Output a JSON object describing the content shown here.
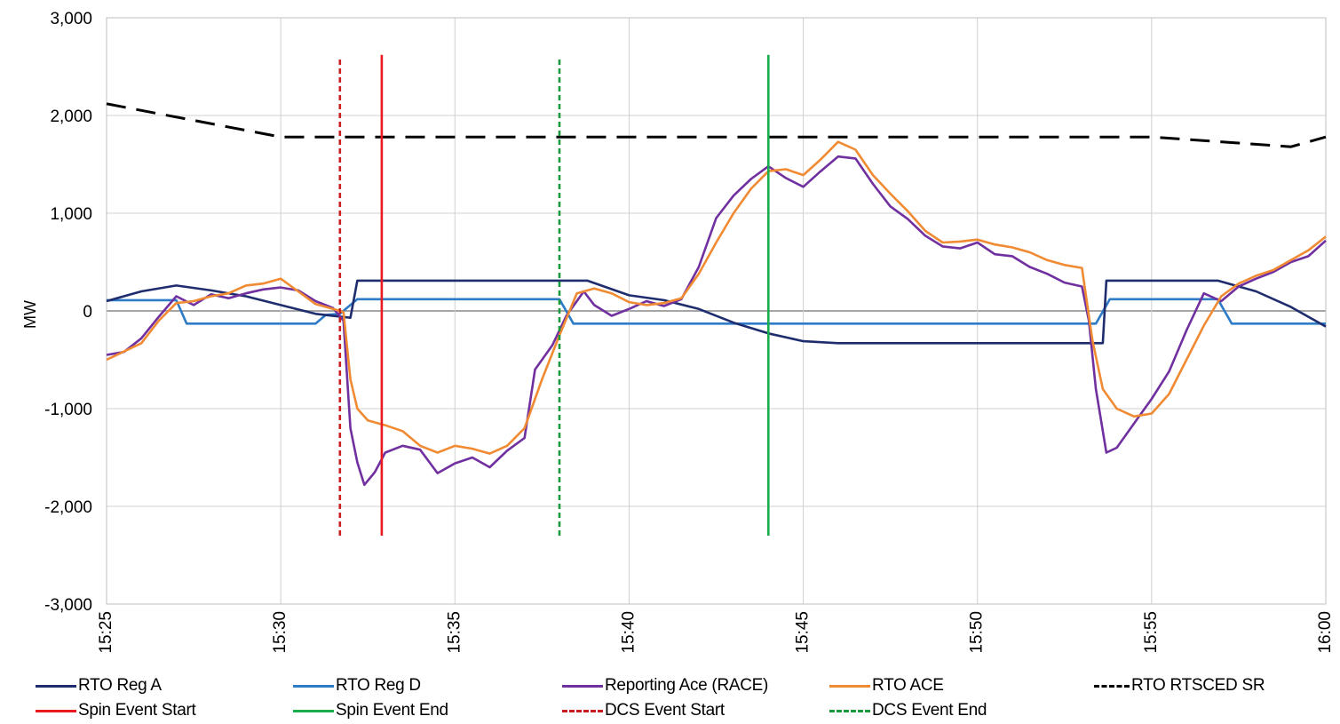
{
  "chart_data": {
    "type": "line",
    "title": "",
    "xlabel": "",
    "ylabel": "MW",
    "ylim": [
      -3000,
      3000
    ],
    "yticks": [
      -3000,
      -2000,
      -1000,
      0,
      1000,
      2000,
      3000
    ],
    "ytick_labels": [
      "-3,000",
      "-2,000",
      "-1,000",
      "0",
      "1,000",
      "2,000",
      "3,000"
    ],
    "xlim": [
      "15:25",
      "16:00"
    ],
    "xticks": [
      "15:25",
      "15:30",
      "15:35",
      "15:40",
      "15:45",
      "15:50",
      "15:55",
      "16:00"
    ],
    "grid": true,
    "legend_position": "bottom",
    "series": [
      {
        "name": "RTO Reg A",
        "color": "#1f2d6e",
        "dash": "solid",
        "points": [
          [
            "15:25",
            100
          ],
          [
            "15:26",
            200
          ],
          [
            "15:27",
            260
          ],
          [
            "15:28",
            210
          ],
          [
            "15:29",
            150
          ],
          [
            "15:30",
            60
          ],
          [
            "15:31",
            -30
          ],
          [
            "15:32",
            -70
          ],
          [
            "15:32.2",
            310
          ],
          [
            "15:38.8",
            310
          ],
          [
            "15:40",
            160
          ],
          [
            "15:41",
            110
          ],
          [
            "15:42",
            20
          ],
          [
            "15:43",
            -120
          ],
          [
            "15:44",
            -230
          ],
          [
            "15:45",
            -310
          ],
          [
            "15:46",
            -330
          ],
          [
            "15:53.6",
            -330
          ],
          [
            "15:53.7",
            310
          ],
          [
            "15:56.9",
            310
          ],
          [
            "15:58",
            200
          ],
          [
            "15:59",
            40
          ],
          [
            "16:00",
            -160
          ]
        ]
      },
      {
        "name": "RTO Reg D",
        "color": "#2e7cc8",
        "dash": "solid",
        "points": [
          [
            "15:25",
            110
          ],
          [
            "15:27",
            110
          ],
          [
            "15:27.3",
            -130
          ],
          [
            "15:31",
            -130
          ],
          [
            "15:31.3",
            -40
          ],
          [
            "15:31.7",
            -30
          ],
          [
            "15:32.2",
            120
          ],
          [
            "15:38",
            120
          ],
          [
            "15:38.4",
            -130
          ],
          [
            "15:53.4",
            -130
          ],
          [
            "15:53.8",
            120
          ],
          [
            "15:56.9",
            120
          ],
          [
            "15:57.3",
            -130
          ],
          [
            "16:00",
            -130
          ]
        ]
      },
      {
        "name": "Reporting Ace (RACE)",
        "color": "#7030a0",
        "dash": "solid",
        "points": [
          [
            "15:25",
            -450
          ],
          [
            "15:25.5",
            -420
          ],
          [
            "15:26",
            -280
          ],
          [
            "15:26.5",
            -60
          ],
          [
            "15:27",
            150
          ],
          [
            "15:27.5",
            60
          ],
          [
            "15:28",
            170
          ],
          [
            "15:28.5",
            130
          ],
          [
            "15:29",
            180
          ],
          [
            "15:29.5",
            220
          ],
          [
            "15:30",
            240
          ],
          [
            "15:30.5",
            210
          ],
          [
            "15:31",
            100
          ],
          [
            "15:31.5",
            30
          ],
          [
            "15:31.8",
            -100
          ],
          [
            "15:32",
            -1200
          ],
          [
            "15:32.2",
            -1550
          ],
          [
            "15:32.4",
            -1780
          ],
          [
            "15:32.7",
            -1650
          ],
          [
            "15:33",
            -1450
          ],
          [
            "15:33.5",
            -1380
          ],
          [
            "15:34",
            -1420
          ],
          [
            "15:34.5",
            -1660
          ],
          [
            "15:35",
            -1560
          ],
          [
            "15:35.5",
            -1500
          ],
          [
            "15:36",
            -1600
          ],
          [
            "15:36.5",
            -1430
          ],
          [
            "15:37",
            -1300
          ],
          [
            "15:37.3",
            -600
          ],
          [
            "15:37.8",
            -350
          ],
          [
            "15:38.2",
            -50
          ],
          [
            "15:38.7",
            200
          ],
          [
            "15:39",
            60
          ],
          [
            "15:39.5",
            -50
          ],
          [
            "15:40",
            20
          ],
          [
            "15:40.5",
            100
          ],
          [
            "15:41",
            50
          ],
          [
            "15:41.5",
            120
          ],
          [
            "15:42",
            450
          ],
          [
            "15:42.5",
            950
          ],
          [
            "15:43",
            1180
          ],
          [
            "15:43.5",
            1350
          ],
          [
            "15:44",
            1480
          ],
          [
            "15:44.5",
            1360
          ],
          [
            "15:45",
            1270
          ],
          [
            "15:45.5",
            1430
          ],
          [
            "15:46",
            1580
          ],
          [
            "15:46.5",
            1560
          ],
          [
            "15:47",
            1300
          ],
          [
            "15:47.5",
            1070
          ],
          [
            "15:48",
            940
          ],
          [
            "15:48.5",
            770
          ],
          [
            "15:49",
            660
          ],
          [
            "15:49.5",
            640
          ],
          [
            "15:50",
            700
          ],
          [
            "15:50.5",
            580
          ],
          [
            "15:51",
            560
          ],
          [
            "15:51.5",
            450
          ],
          [
            "15:52",
            380
          ],
          [
            "15:52.5",
            290
          ],
          [
            "15:53",
            250
          ],
          [
            "15:53.2",
            -100
          ],
          [
            "15:53.4",
            -800
          ],
          [
            "15:53.7",
            -1450
          ],
          [
            "15:54",
            -1400
          ],
          [
            "15:54.5",
            -1150
          ],
          [
            "15:55",
            -900
          ],
          [
            "15:55.5",
            -620
          ],
          [
            "15:56",
            -200
          ],
          [
            "15:56.5",
            180
          ],
          [
            "15:57",
            100
          ],
          [
            "15:57.5",
            250
          ],
          [
            "15:58",
            330
          ],
          [
            "15:58.5",
            400
          ],
          [
            "15:59",
            500
          ],
          [
            "15:59.5",
            560
          ],
          [
            "16:00",
            720
          ]
        ]
      },
      {
        "name": "RTO ACE",
        "color": "#f08a33",
        "dash": "solid",
        "points": [
          [
            "15:25",
            -500
          ],
          [
            "15:26",
            -330
          ],
          [
            "15:26.5",
            -100
          ],
          [
            "15:27",
            80
          ],
          [
            "15:27.5",
            100
          ],
          [
            "15:28",
            150
          ],
          [
            "15:28.5",
            180
          ],
          [
            "15:29",
            260
          ],
          [
            "15:29.5",
            280
          ],
          [
            "15:30",
            330
          ],
          [
            "15:30.5",
            200
          ],
          [
            "15:31",
            70
          ],
          [
            "15:31.5",
            20
          ],
          [
            "15:31.8",
            -10
          ],
          [
            "15:32",
            -700
          ],
          [
            "15:32.2",
            -1000
          ],
          [
            "15:32.5",
            -1120
          ],
          [
            "15:33",
            -1170
          ],
          [
            "15:33.5",
            -1230
          ],
          [
            "15:34",
            -1380
          ],
          [
            "15:34.5",
            -1450
          ],
          [
            "15:35",
            -1380
          ],
          [
            "15:35.5",
            -1410
          ],
          [
            "15:36",
            -1460
          ],
          [
            "15:36.5",
            -1380
          ],
          [
            "15:37",
            -1200
          ],
          [
            "15:37.5",
            -700
          ],
          [
            "15:38",
            -250
          ],
          [
            "15:38.5",
            180
          ],
          [
            "15:39",
            230
          ],
          [
            "15:39.5",
            180
          ],
          [
            "15:40",
            90
          ],
          [
            "15:40.5",
            60
          ],
          [
            "15:41",
            80
          ],
          [
            "15:41.5",
            130
          ],
          [
            "15:42",
            380
          ],
          [
            "15:42.5",
            700
          ],
          [
            "15:43",
            1000
          ],
          [
            "15:43.5",
            1250
          ],
          [
            "15:44",
            1430
          ],
          [
            "15:44.5",
            1450
          ],
          [
            "15:45",
            1390
          ],
          [
            "15:45.5",
            1550
          ],
          [
            "15:46",
            1730
          ],
          [
            "15:46.5",
            1650
          ],
          [
            "15:47",
            1390
          ],
          [
            "15:47.5",
            1200
          ],
          [
            "15:48",
            1020
          ],
          [
            "15:48.5",
            820
          ],
          [
            "15:49",
            700
          ],
          [
            "15:49.5",
            710
          ],
          [
            "15:50",
            730
          ],
          [
            "15:50.5",
            680
          ],
          [
            "15:51",
            650
          ],
          [
            "15:51.5",
            600
          ],
          [
            "15:52",
            520
          ],
          [
            "15:52.5",
            470
          ],
          [
            "15:53",
            440
          ],
          [
            "15:53.3",
            -300
          ],
          [
            "15:53.6",
            -800
          ],
          [
            "15:54",
            -1000
          ],
          [
            "15:54.5",
            -1080
          ],
          [
            "15:55",
            -1050
          ],
          [
            "15:55.5",
            -850
          ],
          [
            "15:56",
            -500
          ],
          [
            "15:56.5",
            -150
          ],
          [
            "15:57",
            150
          ],
          [
            "15:57.5",
            280
          ],
          [
            "15:58",
            360
          ],
          [
            "15:58.5",
            420
          ],
          [
            "15:59",
            520
          ],
          [
            "15:59.5",
            620
          ],
          [
            "16:00",
            760
          ]
        ]
      },
      {
        "name": "RTO RTSCED SR",
        "color": "#000000",
        "dash": "long-dash",
        "points": [
          [
            "15:25",
            2120
          ],
          [
            "15:30",
            1780
          ],
          [
            "15:55",
            1780
          ],
          [
            "15:59",
            1680
          ],
          [
            "16:00",
            1780
          ]
        ]
      },
      {
        "name": "Spin Event Start",
        "color": "#e8191f",
        "dash": "solid",
        "points": [
          [
            "15:32.9",
            -2300
          ],
          [
            "15:32.9",
            2620
          ]
        ]
      },
      {
        "name": "Spin Event End",
        "color": "#1aad4b",
        "dash": "solid",
        "points": [
          [
            "15:44",
            -2300
          ],
          [
            "15:44",
            2620
          ]
        ]
      },
      {
        "name": "DCS Event Start",
        "color": "#c81e1e",
        "dash": "short-dash",
        "points": [
          [
            "15:31.7",
            -2300
          ],
          [
            "15:31.7",
            2580
          ]
        ]
      },
      {
        "name": "DCS Event End",
        "color": "#1a9a3c",
        "dash": "short-dash",
        "points": [
          [
            "15:38",
            -2300
          ],
          [
            "15:38",
            2580
          ]
        ]
      }
    ]
  }
}
